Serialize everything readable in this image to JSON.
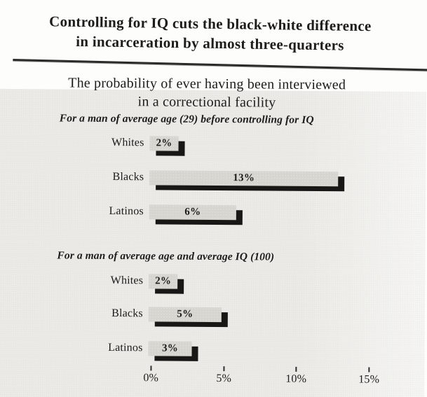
{
  "figure": {
    "title_line1": "Controlling for IQ cuts the black-white difference",
    "title_line2": "in incarceration by almost three-quarters"
  },
  "chart_data": {
    "type": "bar",
    "orientation": "horizontal",
    "title_line1": "The probability of ever having been interviewed",
    "title_line2": "in a correctional facility",
    "unit": "%",
    "xlim": [
      0,
      15
    ],
    "grid": false,
    "x_ticks": [
      {
        "label": "0%",
        "value": 0
      },
      {
        "label": "5%",
        "value": 5
      },
      {
        "label": "10%",
        "value": 10
      },
      {
        "label": "15%",
        "value": 15
      }
    ],
    "groups": [
      {
        "header": "For a man of average age (29) before controlling for IQ",
        "rows": [
          {
            "category": "Whites",
            "value": 2,
            "label": "2%"
          },
          {
            "category": "Blacks",
            "value": 13,
            "label": "13%"
          },
          {
            "category": "Latinos",
            "value": 6,
            "label": "6%"
          }
        ]
      },
      {
        "header": "For a man of average age and average IQ (100)",
        "rows": [
          {
            "category": "Whites",
            "value": 2,
            "label": "2%"
          },
          {
            "category": "Blacks",
            "value": 5,
            "label": "5%"
          },
          {
            "category": "Latinos",
            "value": 3,
            "label": "3%"
          }
        ]
      }
    ]
  },
  "colors": {
    "bar_fill": "#d6d5d0",
    "bar_shadow": "#181716",
    "panel_bg": "#ebeae6",
    "page_bg": "#fdfdfc",
    "text": "#1d1c1a"
  }
}
